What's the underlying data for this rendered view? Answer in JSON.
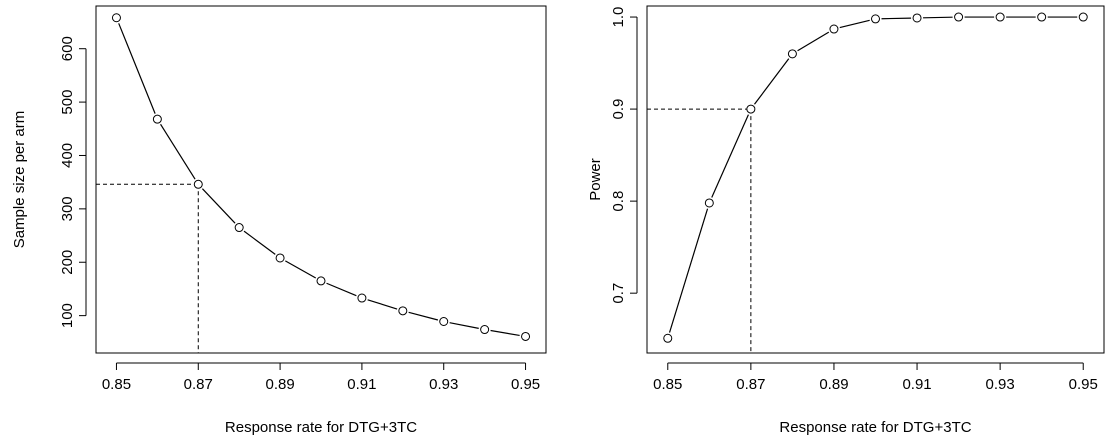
{
  "chart_data": [
    {
      "type": "line",
      "title": "",
      "xlabel": "Response rate for DTG+3TC",
      "ylabel": "Sample size per arm",
      "x": [
        0.85,
        0.86,
        0.87,
        0.88,
        0.89,
        0.9,
        0.91,
        0.92,
        0.93,
        0.94,
        0.95
      ],
      "series": [
        {
          "values": [
            658,
            468,
            346,
            265,
            208,
            165,
            133,
            109,
            89,
            74,
            61
          ]
        }
      ],
      "xlim": [
        0.845,
        0.955
      ],
      "ylim": [
        30,
        680
      ],
      "xticks": [
        "0.85",
        "0.87",
        "0.89",
        "0.91",
        "0.93",
        "0.95"
      ],
      "yticks": [
        "100",
        "200",
        "300",
        "400",
        "500",
        "600"
      ],
      "markers": "open-circle",
      "grid": false,
      "reference_lines": {
        "x": 0.87,
        "y": 346,
        "style": "dashed"
      }
    },
    {
      "type": "line",
      "title": "",
      "xlabel": "Response rate for DTG+3TC",
      "ylabel": "Power",
      "x": [
        0.85,
        0.86,
        0.87,
        0.88,
        0.89,
        0.9,
        0.91,
        0.92,
        0.93,
        0.94,
        0.95
      ],
      "series": [
        {
          "values": [
            0.651,
            0.798,
            0.9,
            0.96,
            0.987,
            0.998,
            0.999,
            1.0,
            1.0,
            1.0,
            1.0
          ]
        }
      ],
      "xlim": [
        0.845,
        0.955
      ],
      "ylim": [
        0.635,
        1.012
      ],
      "xticks": [
        "0.85",
        "0.87",
        "0.89",
        "0.91",
        "0.93",
        "0.95"
      ],
      "yticks": [
        "0.7",
        "0.8",
        "0.9",
        "1.0"
      ],
      "markers": "open-circle",
      "grid": false,
      "reference_lines": {
        "x": 0.87,
        "y": 0.9,
        "style": "dashed"
      }
    }
  ]
}
